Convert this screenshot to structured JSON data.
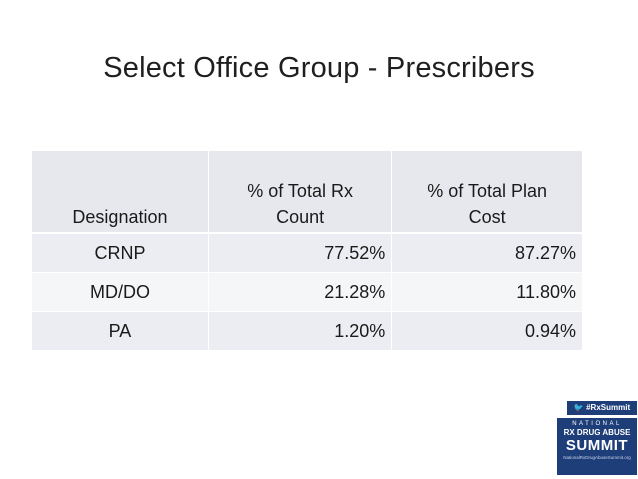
{
  "slide": {
    "title": "Select Office Group - Prescribers"
  },
  "table": {
    "headers": [
      "Designation",
      "% of Total Rx Count",
      "% of Total Plan Cost"
    ],
    "header_lines": {
      "col2": [
        "% of Total Rx",
        "Count"
      ],
      "col3": [
        "% of Total Plan",
        "Cost"
      ]
    },
    "rows": [
      {
        "designation": "CRNP",
        "rx_count": "77.52%",
        "plan_cost": "87.27%"
      },
      {
        "designation": "MD/DO",
        "rx_count": "21.28%",
        "plan_cost": "11.80%"
      },
      {
        "designation": "PA",
        "rx_count": "1.20%",
        "plan_cost": "0.94%"
      }
    ]
  },
  "logo": {
    "hashtag": "#RxSummit",
    "line1": "NATIONAL",
    "line2": "RX DRUG ABUSE",
    "line3": "SUMMIT",
    "url": "NationalRxDrugAbuseSummit.org",
    "color": "#1e3e7a"
  }
}
